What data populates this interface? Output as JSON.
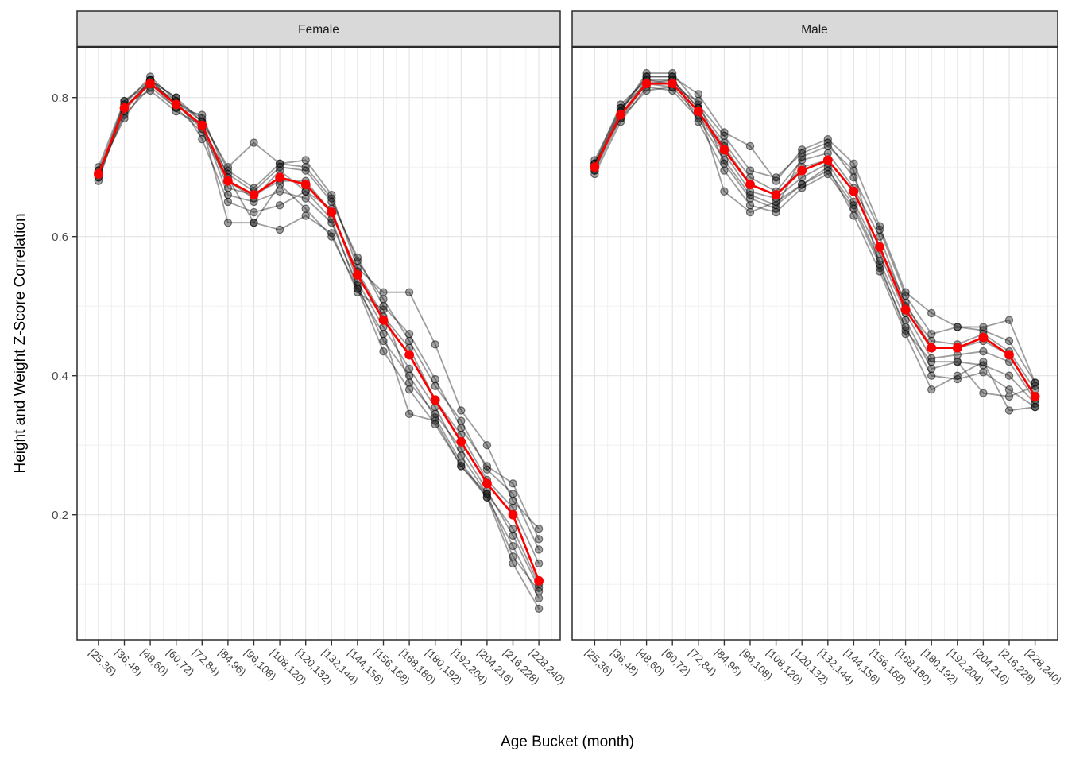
{
  "figure": {
    "x_axis": {
      "title": "Age Bucket (month)"
    },
    "y_axis": {
      "title": "Height and Weight Z-Score Correlation",
      "tick_labels": [
        "0.2",
        "0.4",
        "0.6",
        "0.8"
      ]
    }
  },
  "chart_data": {
    "type": "line",
    "facet_variable_values": [
      "Female",
      "Male"
    ],
    "categories": [
      "[25,36)",
      "[36,48)",
      "[48,60)",
      "[60,72)",
      "[72,84)",
      "[84,96)",
      "[96,108)",
      "[108,120)",
      "[120,132)",
      "[132,144)",
      "[144,156)",
      "[156,168)",
      "[168,180)",
      "[180,192)",
      "[192,204)",
      "[204,216)",
      "[216,228)",
      "[228,240)"
    ],
    "xlabel": "Age Bucket (month)",
    "ylabel": "Height and Weight Z-Score Correlation",
    "y_ticks": [
      0.2,
      0.4,
      0.6,
      0.8
    ],
    "y_minor_ticks": [
      0.1,
      0.3,
      0.5,
      0.7
    ],
    "ylim": [
      0.02,
      0.872
    ],
    "grid": true,
    "legend_position": "none",
    "colors": {
      "mean_line": "#fb0000",
      "individual_line": "rgba(0,0,0,0.38)",
      "individual_point_fill": "rgba(35,35,35,0.42)",
      "individual_point_stroke": "rgba(0,0,0,0.5)",
      "strip_background": "#d9d9d9",
      "panel_border": "#2b2b2b",
      "grid_major": "#e3e3e3",
      "grid_minor": "#efefef",
      "tick_mark": "#333333",
      "axis_text": "#4d4d4d"
    },
    "facets": [
      {
        "label": "Female",
        "mean_series": {
          "name": "mean",
          "values": [
            0.69,
            0.785,
            0.82,
            0.79,
            0.76,
            0.68,
            0.66,
            0.685,
            0.675,
            0.635,
            0.545,
            0.48,
            0.43,
            0.365,
            0.305,
            0.245,
            0.2,
            0.105
          ]
        },
        "individual_series": [
          {
            "name": "line-1",
            "values": [
              0.695,
              0.79,
              0.83,
              0.795,
              0.77,
              0.695,
              0.67,
              0.705,
              0.7,
              0.655,
              0.565,
              0.51,
              0.45,
              0.385,
              0.335,
              0.265,
              0.23,
              0.15
            ]
          },
          {
            "name": "line-2",
            "values": [
              0.685,
              0.78,
              0.825,
              0.8,
              0.765,
              0.7,
              0.735,
              0.705,
              0.71,
              0.66,
              0.555,
              0.52,
              0.52,
              0.445,
              0.35,
              0.3,
              0.22,
              0.18
            ]
          },
          {
            "name": "line-3",
            "values": [
              0.7,
              0.795,
              0.825,
              0.79,
              0.755,
              0.69,
              0.665,
              0.7,
              0.695,
              0.65,
              0.57,
              0.5,
              0.46,
              0.395,
              0.325,
              0.27,
              0.245,
              0.165
            ]
          },
          {
            "name": "line-4",
            "values": [
              0.69,
              0.785,
              0.82,
              0.795,
              0.765,
              0.67,
              0.66,
              0.68,
              0.68,
              0.635,
              0.55,
              0.485,
              0.44,
              0.365,
              0.315,
              0.25,
              0.21,
              0.13
            ]
          },
          {
            "name": "line-5",
            "values": [
              0.69,
              0.775,
              0.815,
              0.785,
              0.75,
              0.68,
              0.655,
              0.695,
              0.665,
              0.64,
              0.535,
              0.47,
              0.41,
              0.355,
              0.285,
              0.23,
              0.18,
              0.1
            ]
          },
          {
            "name": "line-6",
            "values": [
              0.68,
              0.79,
              0.81,
              0.78,
              0.76,
              0.66,
              0.65,
              0.665,
              0.655,
              0.62,
              0.53,
              0.45,
              0.4,
              0.34,
              0.275,
              0.225,
              0.155,
              0.08
            ]
          },
          {
            "name": "line-7",
            "values": [
              0.695,
              0.77,
              0.825,
              0.8,
              0.74,
              0.65,
              0.635,
              0.645,
              0.665,
              0.625,
              0.525,
              0.435,
              0.38,
              0.33,
              0.27,
              0.23,
              0.14,
              0.09
            ]
          },
          {
            "name": "line-8",
            "values": [
              0.685,
              0.795,
              0.82,
              0.785,
              0.775,
              0.685,
              0.62,
              0.61,
              0.63,
              0.605,
              0.52,
              0.495,
              0.39,
              0.345,
              0.295,
              0.235,
              0.17,
              0.095
            ]
          },
          {
            "name": "line-9",
            "values": [
              0.69,
              0.785,
              0.825,
              0.79,
              0.76,
              0.62,
              0.62,
              0.675,
              0.64,
              0.6,
              0.525,
              0.46,
              0.345,
              0.335,
              0.27,
              0.225,
              0.13,
              0.065
            ]
          }
        ]
      },
      {
        "label": "Male",
        "mean_series": {
          "name": "mean",
          "values": [
            0.7,
            0.775,
            0.82,
            0.82,
            0.78,
            0.725,
            0.675,
            0.66,
            0.695,
            0.71,
            0.665,
            0.585,
            0.495,
            0.44,
            0.44,
            0.455,
            0.43,
            0.37
          ]
        },
        "individual_series": [
          {
            "name": "line-1",
            "values": [
              0.71,
              0.785,
              0.83,
              0.83,
              0.805,
              0.75,
              0.73,
              0.68,
              0.725,
              0.74,
              0.705,
              0.615,
              0.52,
              0.49,
              0.47,
              0.47,
              0.48,
              0.39
            ]
          },
          {
            "name": "line-2",
            "values": [
              0.705,
              0.78,
              0.835,
              0.835,
              0.79,
              0.745,
              0.695,
              0.685,
              0.72,
              0.735,
              0.685,
              0.61,
              0.515,
              0.46,
              0.47,
              0.465,
              0.45,
              0.39
            ]
          },
          {
            "name": "line-3",
            "values": [
              0.705,
              0.79,
              0.825,
              0.825,
              0.785,
              0.735,
              0.685,
              0.665,
              0.71,
              0.72,
              0.67,
              0.6,
              0.5,
              0.45,
              0.445,
              0.46,
              0.435,
              0.38
            ]
          },
          {
            "name": "line-4",
            "values": [
              0.7,
              0.775,
              0.825,
              0.82,
              0.78,
              0.73,
              0.675,
              0.66,
              0.7,
              0.71,
              0.665,
              0.585,
              0.505,
              0.44,
              0.44,
              0.45,
              0.43,
              0.37
            ]
          },
          {
            "name": "line-5",
            "values": [
              0.695,
              0.77,
              0.82,
              0.815,
              0.775,
              0.72,
              0.665,
              0.655,
              0.685,
              0.705,
              0.65,
              0.575,
              0.49,
              0.425,
              0.43,
              0.435,
              0.42,
              0.365
            ]
          },
          {
            "name": "line-6",
            "values": [
              0.69,
              0.765,
              0.815,
              0.81,
              0.77,
              0.71,
              0.66,
              0.645,
              0.675,
              0.695,
              0.645,
              0.565,
              0.48,
              0.41,
              0.42,
              0.415,
              0.4,
              0.36
            ]
          },
          {
            "name": "line-7",
            "values": [
              0.705,
              0.77,
              0.81,
              0.815,
              0.795,
              0.705,
              0.655,
              0.64,
              0.715,
              0.73,
              0.695,
              0.555,
              0.47,
              0.4,
              0.395,
              0.405,
              0.38,
              0.355
            ]
          },
          {
            "name": "line-8",
            "values": [
              0.695,
              0.78,
              0.83,
              0.83,
              0.765,
              0.695,
              0.645,
              0.635,
              0.67,
              0.69,
              0.64,
              0.56,
              0.465,
              0.42,
              0.42,
              0.375,
              0.37,
              0.385
            ]
          },
          {
            "name": "line-9",
            "values": [
              0.7,
              0.785,
              0.82,
              0.825,
              0.785,
              0.665,
              0.635,
              0.65,
              0.675,
              0.7,
              0.63,
              0.55,
              0.46,
              0.38,
              0.4,
              0.42,
              0.35,
              0.355
            ]
          }
        ]
      }
    ]
  }
}
